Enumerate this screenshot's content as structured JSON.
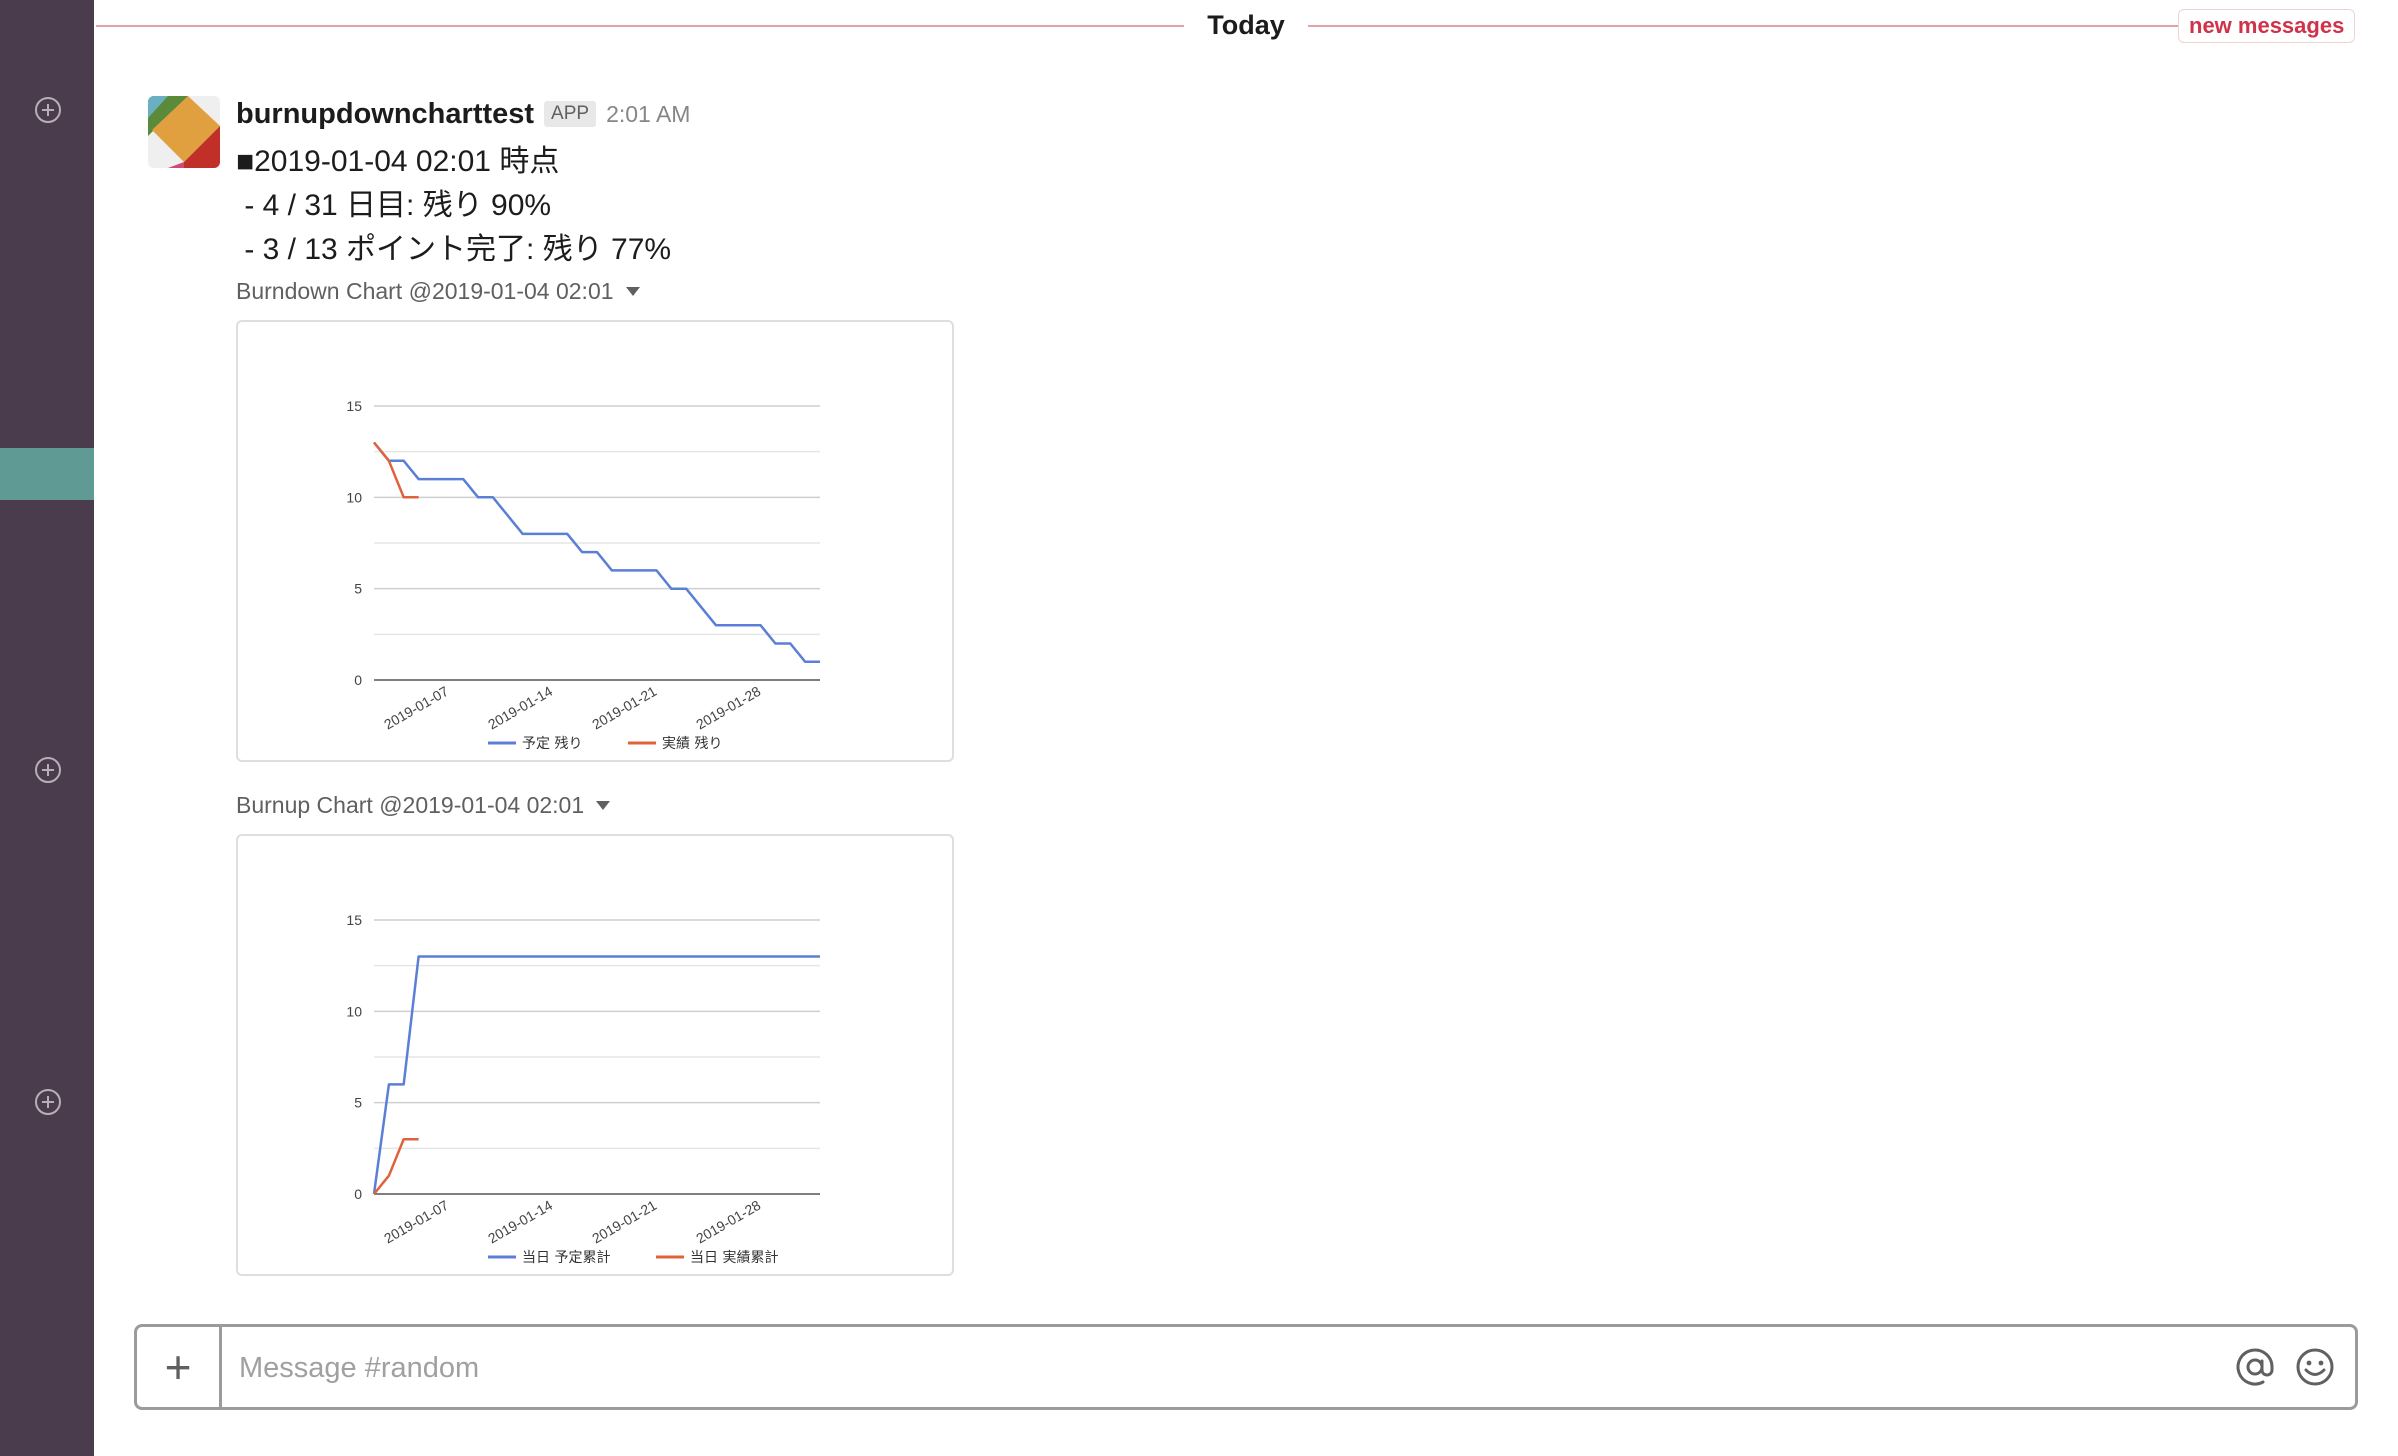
{
  "colors": {
    "sidebar_bg": "#4a3c4c",
    "sidebar_highlight": "#5f9a94",
    "new_messages": "#d0324a",
    "plan_line": "#5b7fd6",
    "actual_line": "#e0623a"
  },
  "sidebar": {
    "add_buttons": [
      {
        "icon": "plus-circle-icon"
      },
      {
        "icon": "plus-circle-icon"
      },
      {
        "icon": "plus-circle-icon"
      }
    ]
  },
  "divider": {
    "label": "Today",
    "new_messages_label": "new messages"
  },
  "message": {
    "avatar_icon": "app-avatar-icon",
    "sender": "burnupdowncharttest",
    "badge": "APP",
    "time": "2:01 AM",
    "lines": [
      "■2019-01-04 02:01 時点",
      " - 4 / 31 日目: 残り 90%",
      " - 3 / 13 ポイント完了: 残り 77%"
    ],
    "attachments": [
      {
        "title": "Burndown Chart @2019-01-04 02:01",
        "menu_icon": "caret-down-icon"
      },
      {
        "title": "Burnup Chart @2019-01-04 02:01",
        "menu_icon": "caret-down-icon"
      }
    ]
  },
  "chart_data": [
    {
      "type": "line",
      "title": "",
      "xlabel": "",
      "ylabel": "",
      "x_start": "2019-01-04",
      "x_end": "2019-02-03",
      "x_ticks": [
        "2019-01-07",
        "2019-01-14",
        "2019-01-21",
        "2019-01-28"
      ],
      "y_ticks": [
        0,
        5,
        10,
        15
      ],
      "ylim": [
        0,
        15
      ],
      "grid": true,
      "legend_position": "bottom",
      "series": [
        {
          "name": "予定 残り",
          "color": "#5b7fd6",
          "points": [
            [
              "2019-01-04",
              13
            ],
            [
              "2019-01-05",
              12
            ],
            [
              "2019-01-06",
              12
            ],
            [
              "2019-01-07",
              11
            ],
            [
              "2019-01-10",
              11
            ],
            [
              "2019-01-11",
              10
            ],
            [
              "2019-01-12",
              10
            ],
            [
              "2019-01-14",
              8
            ],
            [
              "2019-01-17",
              8
            ],
            [
              "2019-01-18",
              7
            ],
            [
              "2019-01-19",
              7
            ],
            [
              "2019-01-20",
              6
            ],
            [
              "2019-01-23",
              6
            ],
            [
              "2019-01-24",
              5
            ],
            [
              "2019-01-25",
              5
            ],
            [
              "2019-01-27",
              3
            ],
            [
              "2019-01-30",
              3
            ],
            [
              "2019-01-31",
              2
            ],
            [
              "2019-02-01",
              2
            ],
            [
              "2019-02-02",
              1
            ],
            [
              "2019-02-03",
              1
            ]
          ]
        },
        {
          "name": "実績 残り",
          "color": "#e0623a",
          "points": [
            [
              "2019-01-04",
              13
            ],
            [
              "2019-01-05",
              12
            ],
            [
              "2019-01-06",
              10
            ],
            [
              "2019-01-07",
              10
            ]
          ]
        }
      ]
    },
    {
      "type": "line",
      "title": "",
      "xlabel": "",
      "ylabel": "",
      "x_start": "2019-01-04",
      "x_end": "2019-02-03",
      "x_ticks": [
        "2019-01-07",
        "2019-01-14",
        "2019-01-21",
        "2019-01-28"
      ],
      "y_ticks": [
        0,
        5,
        10,
        15
      ],
      "ylim": [
        0,
        15
      ],
      "grid": true,
      "legend_position": "bottom",
      "series": [
        {
          "name": "当日 予定累計",
          "color": "#5b7fd6",
          "points": [
            [
              "2019-01-04",
              0
            ],
            [
              "2019-01-05",
              6
            ],
            [
              "2019-01-06",
              6
            ],
            [
              "2019-01-07",
              13
            ],
            [
              "2019-02-03",
              13
            ]
          ]
        },
        {
          "name": "当日 実績累計",
          "color": "#e0623a",
          "points": [
            [
              "2019-01-04",
              0
            ],
            [
              "2019-01-05",
              1
            ],
            [
              "2019-01-06",
              3
            ],
            [
              "2019-01-07",
              3
            ]
          ]
        }
      ]
    }
  ],
  "composer": {
    "attach_label": "+",
    "placeholder": "Message #random",
    "mention_icon": "at-sign-icon",
    "emoji_icon": "emoji-smile-icon"
  }
}
